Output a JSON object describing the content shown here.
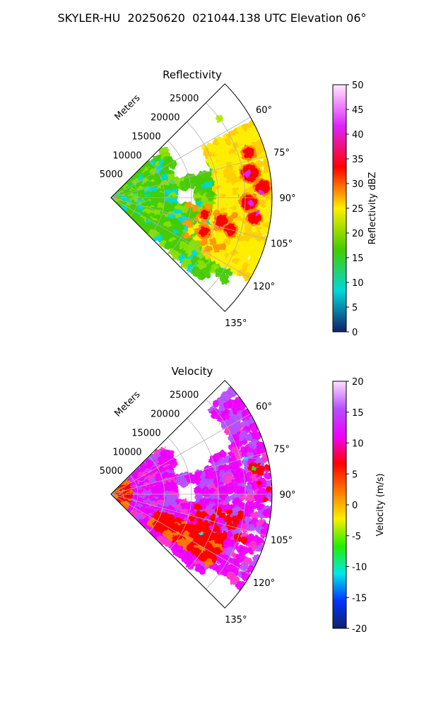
{
  "title": "SKYLER-HU  20250620  021044.138 UTC Elevation 06°",
  "chart_data": [
    {
      "type": "heatmap",
      "title": "Reflectivity",
      "projection": "polar sector",
      "theta_ticks": [
        "60°",
        "75°",
        "90°",
        "105°",
        "120°",
        "135°"
      ],
      "theta_range_deg": [
        45,
        135
      ],
      "radial_label": "Meters",
      "radial_ticks": [
        "5000",
        "10000",
        "15000",
        "20000",
        "25000"
      ],
      "radial_range": [
        0,
        30000
      ],
      "grid": true,
      "colorbar": {
        "label": "Reflectivity dBZ",
        "range": [
          0,
          50
        ],
        "ticks": [
          "0",
          "5",
          "10",
          "15",
          "20",
          "25",
          "30",
          "35",
          "40",
          "45",
          "50"
        ]
      },
      "colors": {
        "low": "#10206a",
        "cyan": "#00d8d8",
        "green": "#44cc00",
        "yellow": "#ffee00",
        "red": "#ff0000",
        "magenta": "#dd22ff",
        "high": "#ffe8ff"
      }
    },
    {
      "type": "heatmap",
      "title": "Velocity",
      "projection": "polar sector",
      "theta_ticks": [
        "60°",
        "75°",
        "90°",
        "105°",
        "120°",
        "135°"
      ],
      "theta_range_deg": [
        45,
        135
      ],
      "radial_label": "Meters",
      "radial_ticks": [
        "5000",
        "10000",
        "15000",
        "20000",
        "25000"
      ],
      "radial_range": [
        0,
        30000
      ],
      "grid": true,
      "colorbar": {
        "label": "Velocity (m/s)",
        "range": [
          -20,
          20
        ],
        "ticks": [
          "-20",
          "-15",
          "-10",
          "-5",
          "0",
          "5",
          "10",
          "15",
          "20"
        ]
      },
      "colors": {
        "low": "#10206a",
        "blue": "#0033ff",
        "cyan": "#00e8e8",
        "green": "#22ee00",
        "yellow": "#ffee00",
        "orange": "#ff7700",
        "red": "#ff0000",
        "magenta": "#ee00ff",
        "violet": "#b550ff",
        "high": "#ffe0ff"
      }
    }
  ]
}
